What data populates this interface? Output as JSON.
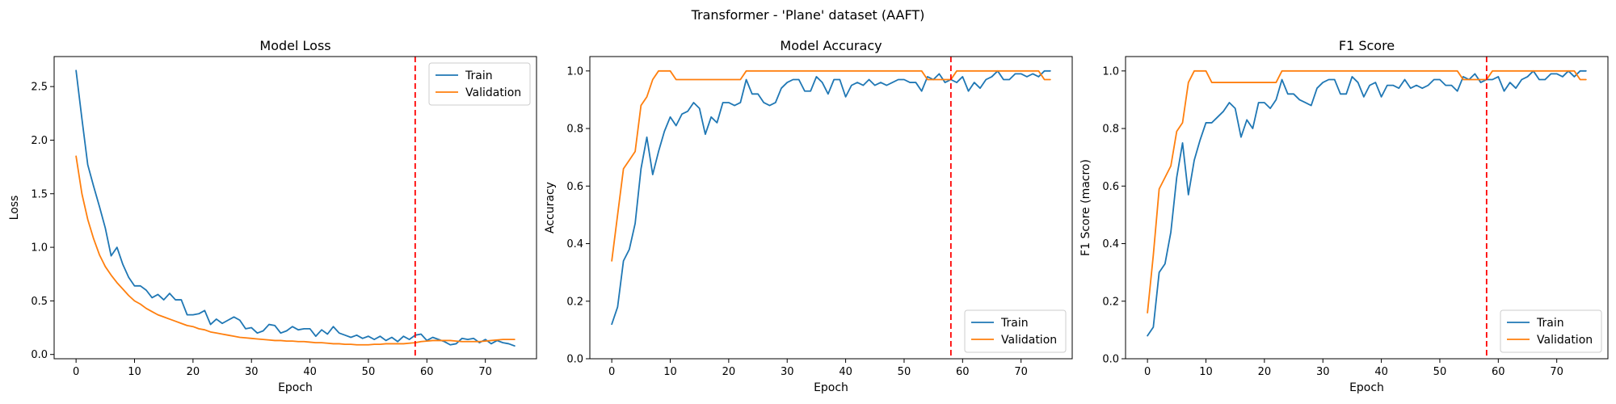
{
  "suptitle": "Transformer - 'Plane' dataset (AAFT)",
  "colors": {
    "train": "#1f77b4",
    "validation": "#ff7f0e",
    "marker": "#ff0000"
  },
  "chart_data": [
    {
      "type": "line",
      "title": "Model Loss",
      "xlabel": "Epoch",
      "ylabel": "Loss",
      "xlim": [
        -3.75,
        78.75
      ],
      "ylim": [
        -0.04,
        2.78
      ],
      "xticks": [
        0,
        10,
        20,
        30,
        40,
        50,
        60,
        70
      ],
      "yticks": [
        0.0,
        0.5,
        1.0,
        1.5,
        2.0,
        2.5
      ],
      "ytick_labels": [
        "0.0",
        "0.5",
        "1.0",
        "1.5",
        "2.0",
        "2.5"
      ],
      "legend_loc": "upper right",
      "vline_x": 58,
      "series": [
        {
          "name": "Train",
          "key": "train",
          "y": [
            2.65,
            2.2,
            1.77,
            1.57,
            1.38,
            1.18,
            0.92,
            1.0,
            0.84,
            0.72,
            0.64,
            0.64,
            0.6,
            0.53,
            0.56,
            0.51,
            0.57,
            0.51,
            0.51,
            0.37,
            0.37,
            0.38,
            0.41,
            0.28,
            0.33,
            0.29,
            0.32,
            0.35,
            0.32,
            0.24,
            0.25,
            0.2,
            0.22,
            0.28,
            0.27,
            0.2,
            0.22,
            0.26,
            0.23,
            0.24,
            0.24,
            0.17,
            0.23,
            0.19,
            0.26,
            0.2,
            0.18,
            0.16,
            0.18,
            0.15,
            0.17,
            0.14,
            0.17,
            0.13,
            0.16,
            0.12,
            0.17,
            0.14,
            0.18,
            0.19,
            0.13,
            0.16,
            0.14,
            0.12,
            0.09,
            0.1,
            0.15,
            0.14,
            0.15,
            0.11,
            0.14,
            0.1,
            0.13,
            0.11,
            0.1,
            0.08
          ]
        },
        {
          "name": "Validation",
          "key": "validation",
          "y": [
            1.85,
            1.5,
            1.26,
            1.08,
            0.93,
            0.82,
            0.74,
            0.67,
            0.61,
            0.55,
            0.5,
            0.47,
            0.43,
            0.4,
            0.37,
            0.35,
            0.33,
            0.31,
            0.29,
            0.27,
            0.26,
            0.24,
            0.23,
            0.21,
            0.2,
            0.19,
            0.18,
            0.17,
            0.16,
            0.155,
            0.15,
            0.145,
            0.14,
            0.135,
            0.13,
            0.13,
            0.125,
            0.125,
            0.12,
            0.12,
            0.115,
            0.11,
            0.11,
            0.105,
            0.1,
            0.1,
            0.095,
            0.095,
            0.09,
            0.09,
            0.09,
            0.095,
            0.095,
            0.1,
            0.1,
            0.1,
            0.1,
            0.105,
            0.11,
            0.12,
            0.125,
            0.13,
            0.13,
            0.13,
            0.13,
            0.125,
            0.12,
            0.12,
            0.12,
            0.12,
            0.125,
            0.13,
            0.135,
            0.14,
            0.14,
            0.14
          ]
        }
      ]
    },
    {
      "type": "line",
      "title": "Model Accuracy",
      "xlabel": "Epoch",
      "ylabel": "Accuracy",
      "xlim": [
        -3.75,
        78.75
      ],
      "ylim": [
        0.0,
        1.05
      ],
      "xticks": [
        0,
        10,
        20,
        30,
        40,
        50,
        60,
        70
      ],
      "yticks": [
        0.0,
        0.2,
        0.4,
        0.6,
        0.8,
        1.0
      ],
      "ytick_labels": [
        "0.0",
        "0.2",
        "0.4",
        "0.6",
        "0.8",
        "1.0"
      ],
      "legend_loc": "lower right",
      "vline_x": 58,
      "series": [
        {
          "name": "Train",
          "key": "train",
          "y": [
            0.12,
            0.18,
            0.34,
            0.38,
            0.47,
            0.66,
            0.77,
            0.64,
            0.72,
            0.79,
            0.84,
            0.81,
            0.85,
            0.86,
            0.89,
            0.87,
            0.78,
            0.84,
            0.82,
            0.89,
            0.89,
            0.88,
            0.89,
            0.97,
            0.92,
            0.92,
            0.89,
            0.88,
            0.89,
            0.94,
            0.96,
            0.97,
            0.97,
            0.93,
            0.93,
            0.98,
            0.96,
            0.92,
            0.97,
            0.97,
            0.91,
            0.95,
            0.96,
            0.95,
            0.97,
            0.95,
            0.96,
            0.95,
            0.96,
            0.97,
            0.97,
            0.96,
            0.96,
            0.93,
            0.98,
            0.97,
            0.99,
            0.96,
            0.97,
            0.96,
            0.98,
            0.93,
            0.96,
            0.94,
            0.97,
            0.98,
            1.0,
            0.97,
            0.97,
            0.99,
            0.99,
            0.98,
            0.99,
            0.98,
            1.0,
            1.0
          ]
        },
        {
          "name": "Validation",
          "key": "validation",
          "y": [
            0.34,
            0.5,
            0.66,
            0.69,
            0.72,
            0.88,
            0.91,
            0.97,
            1.0,
            1.0,
            1.0,
            0.97,
            0.97,
            0.97,
            0.97,
            0.97,
            0.97,
            0.97,
            0.97,
            0.97,
            0.97,
            0.97,
            0.97,
            1.0,
            1.0,
            1.0,
            1.0,
            1.0,
            1.0,
            1.0,
            1.0,
            1.0,
            1.0,
            1.0,
            1.0,
            1.0,
            1.0,
            1.0,
            1.0,
            1.0,
            1.0,
            1.0,
            1.0,
            1.0,
            1.0,
            1.0,
            1.0,
            1.0,
            1.0,
            1.0,
            1.0,
            1.0,
            1.0,
            1.0,
            0.97,
            0.97,
            0.97,
            0.97,
            0.97,
            1.0,
            1.0,
            1.0,
            1.0,
            1.0,
            1.0,
            1.0,
            1.0,
            1.0,
            1.0,
            1.0,
            1.0,
            1.0,
            1.0,
            1.0,
            0.97,
            0.97
          ]
        }
      ]
    },
    {
      "type": "line",
      "title": "F1 Score",
      "xlabel": "Epoch",
      "ylabel": "F1 Score (macro)",
      "xlim": [
        -3.75,
        78.75
      ],
      "ylim": [
        0.0,
        1.05
      ],
      "xticks": [
        0,
        10,
        20,
        30,
        40,
        50,
        60,
        70
      ],
      "yticks": [
        0.0,
        0.2,
        0.4,
        0.6,
        0.8,
        1.0
      ],
      "ytick_labels": [
        "0.0",
        "0.2",
        "0.4",
        "0.6",
        "0.8",
        "1.0"
      ],
      "legend_loc": "lower right",
      "vline_x": 58,
      "series": [
        {
          "name": "Train",
          "key": "train",
          "y": [
            0.08,
            0.11,
            0.3,
            0.33,
            0.44,
            0.63,
            0.75,
            0.57,
            0.69,
            0.76,
            0.82,
            0.82,
            0.84,
            0.86,
            0.89,
            0.87,
            0.77,
            0.83,
            0.8,
            0.89,
            0.89,
            0.87,
            0.9,
            0.97,
            0.92,
            0.92,
            0.9,
            0.89,
            0.88,
            0.94,
            0.96,
            0.97,
            0.97,
            0.92,
            0.92,
            0.98,
            0.96,
            0.91,
            0.95,
            0.96,
            0.91,
            0.95,
            0.95,
            0.94,
            0.97,
            0.94,
            0.95,
            0.94,
            0.95,
            0.97,
            0.97,
            0.95,
            0.95,
            0.93,
            0.98,
            0.97,
            0.99,
            0.96,
            0.97,
            0.97,
            0.98,
            0.93,
            0.96,
            0.94,
            0.97,
            0.98,
            1.0,
            0.97,
            0.97,
            0.99,
            0.99,
            0.98,
            1.0,
            0.98,
            1.0,
            1.0
          ]
        },
        {
          "name": "Validation",
          "key": "validation",
          "y": [
            0.16,
            0.36,
            0.59,
            0.63,
            0.67,
            0.79,
            0.82,
            0.96,
            1.0,
            1.0,
            1.0,
            0.96,
            0.96,
            0.96,
            0.96,
            0.96,
            0.96,
            0.96,
            0.96,
            0.96,
            0.96,
            0.96,
            0.96,
            1.0,
            1.0,
            1.0,
            1.0,
            1.0,
            1.0,
            1.0,
            1.0,
            1.0,
            1.0,
            1.0,
            1.0,
            1.0,
            1.0,
            1.0,
            1.0,
            1.0,
            1.0,
            1.0,
            1.0,
            1.0,
            1.0,
            1.0,
            1.0,
            1.0,
            1.0,
            1.0,
            1.0,
            1.0,
            1.0,
            1.0,
            0.97,
            0.97,
            0.97,
            0.97,
            0.97,
            1.0,
            1.0,
            1.0,
            1.0,
            1.0,
            1.0,
            1.0,
            1.0,
            1.0,
            1.0,
            1.0,
            1.0,
            1.0,
            1.0,
            1.0,
            0.97,
            0.97
          ]
        }
      ]
    }
  ]
}
